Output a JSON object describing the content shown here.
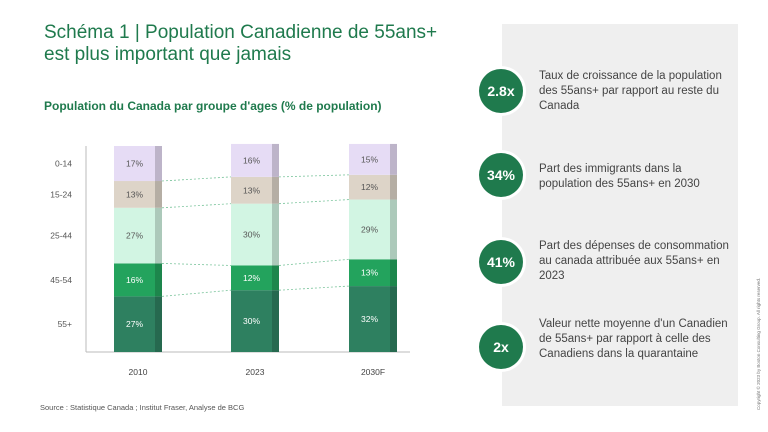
{
  "title": "Schéma 1 | Population Canadienne de 55ans+ est plus important que jamais",
  "chart_heading": "Population du Canada par groupe d'ages (% de population)",
  "source": "Source : Statistique Canada ; Institut Fraser, Analyse de BCG",
  "copyright": "Copyright © 2023 by Boston Consulting Group. All rights reserved.",
  "colors": {
    "accent": "#1f7a4d",
    "panel": "#efefef"
  },
  "stats": [
    {
      "value": "2.8x",
      "text": "Taux de croissance de la population des 55ans+ par rapport au reste du Canada"
    },
    {
      "value": "34%",
      "text": "Part des immigrants dans la population des 55ans+ en 2030"
    },
    {
      "value": "41%",
      "text": "Part des dépenses de consommation au canada attribuée aux 55ans+ en 2023"
    },
    {
      "value": "2x",
      "text": "Valeur nette moyenne d'un Canadien de 55ans+ par rapport à celle des Canadiens dans la quarantaine"
    }
  ],
  "chart_data": {
    "type": "bar",
    "stacked": true,
    "categories": [
      "2010",
      "2023",
      "2030F"
    ],
    "series": [
      {
        "name": "55+",
        "values": [
          27,
          30,
          32
        ],
        "color": "#2e8060"
      },
      {
        "name": "45-54",
        "values": [
          16,
          12,
          13
        ],
        "color": "#23a35d"
      },
      {
        "name": "25-44",
        "values": [
          27,
          30,
          29
        ],
        "color": "#d2f5e3"
      },
      {
        "name": "15-24",
        "values": [
          13,
          13,
          12
        ],
        "color": "#ddd4c8"
      },
      {
        "name": "0-14",
        "values": [
          17,
          16,
          15
        ],
        "color": "#e6dcf5"
      }
    ],
    "data_labels": [
      [
        "27%",
        "30%",
        "32%"
      ],
      [
        "16%",
        "12%",
        "13%"
      ],
      [
        "27%",
        "30%",
        "29%"
      ],
      [
        "13%",
        "13%",
        "12%"
      ],
      [
        "17%",
        "16%",
        "15%"
      ]
    ],
    "row_labels": [
      "55+",
      "45-54",
      "25-44",
      "15-24",
      "0-14"
    ],
    "ylim": [
      0,
      100
    ],
    "grid": false,
    "connector_lines": "dashed"
  }
}
